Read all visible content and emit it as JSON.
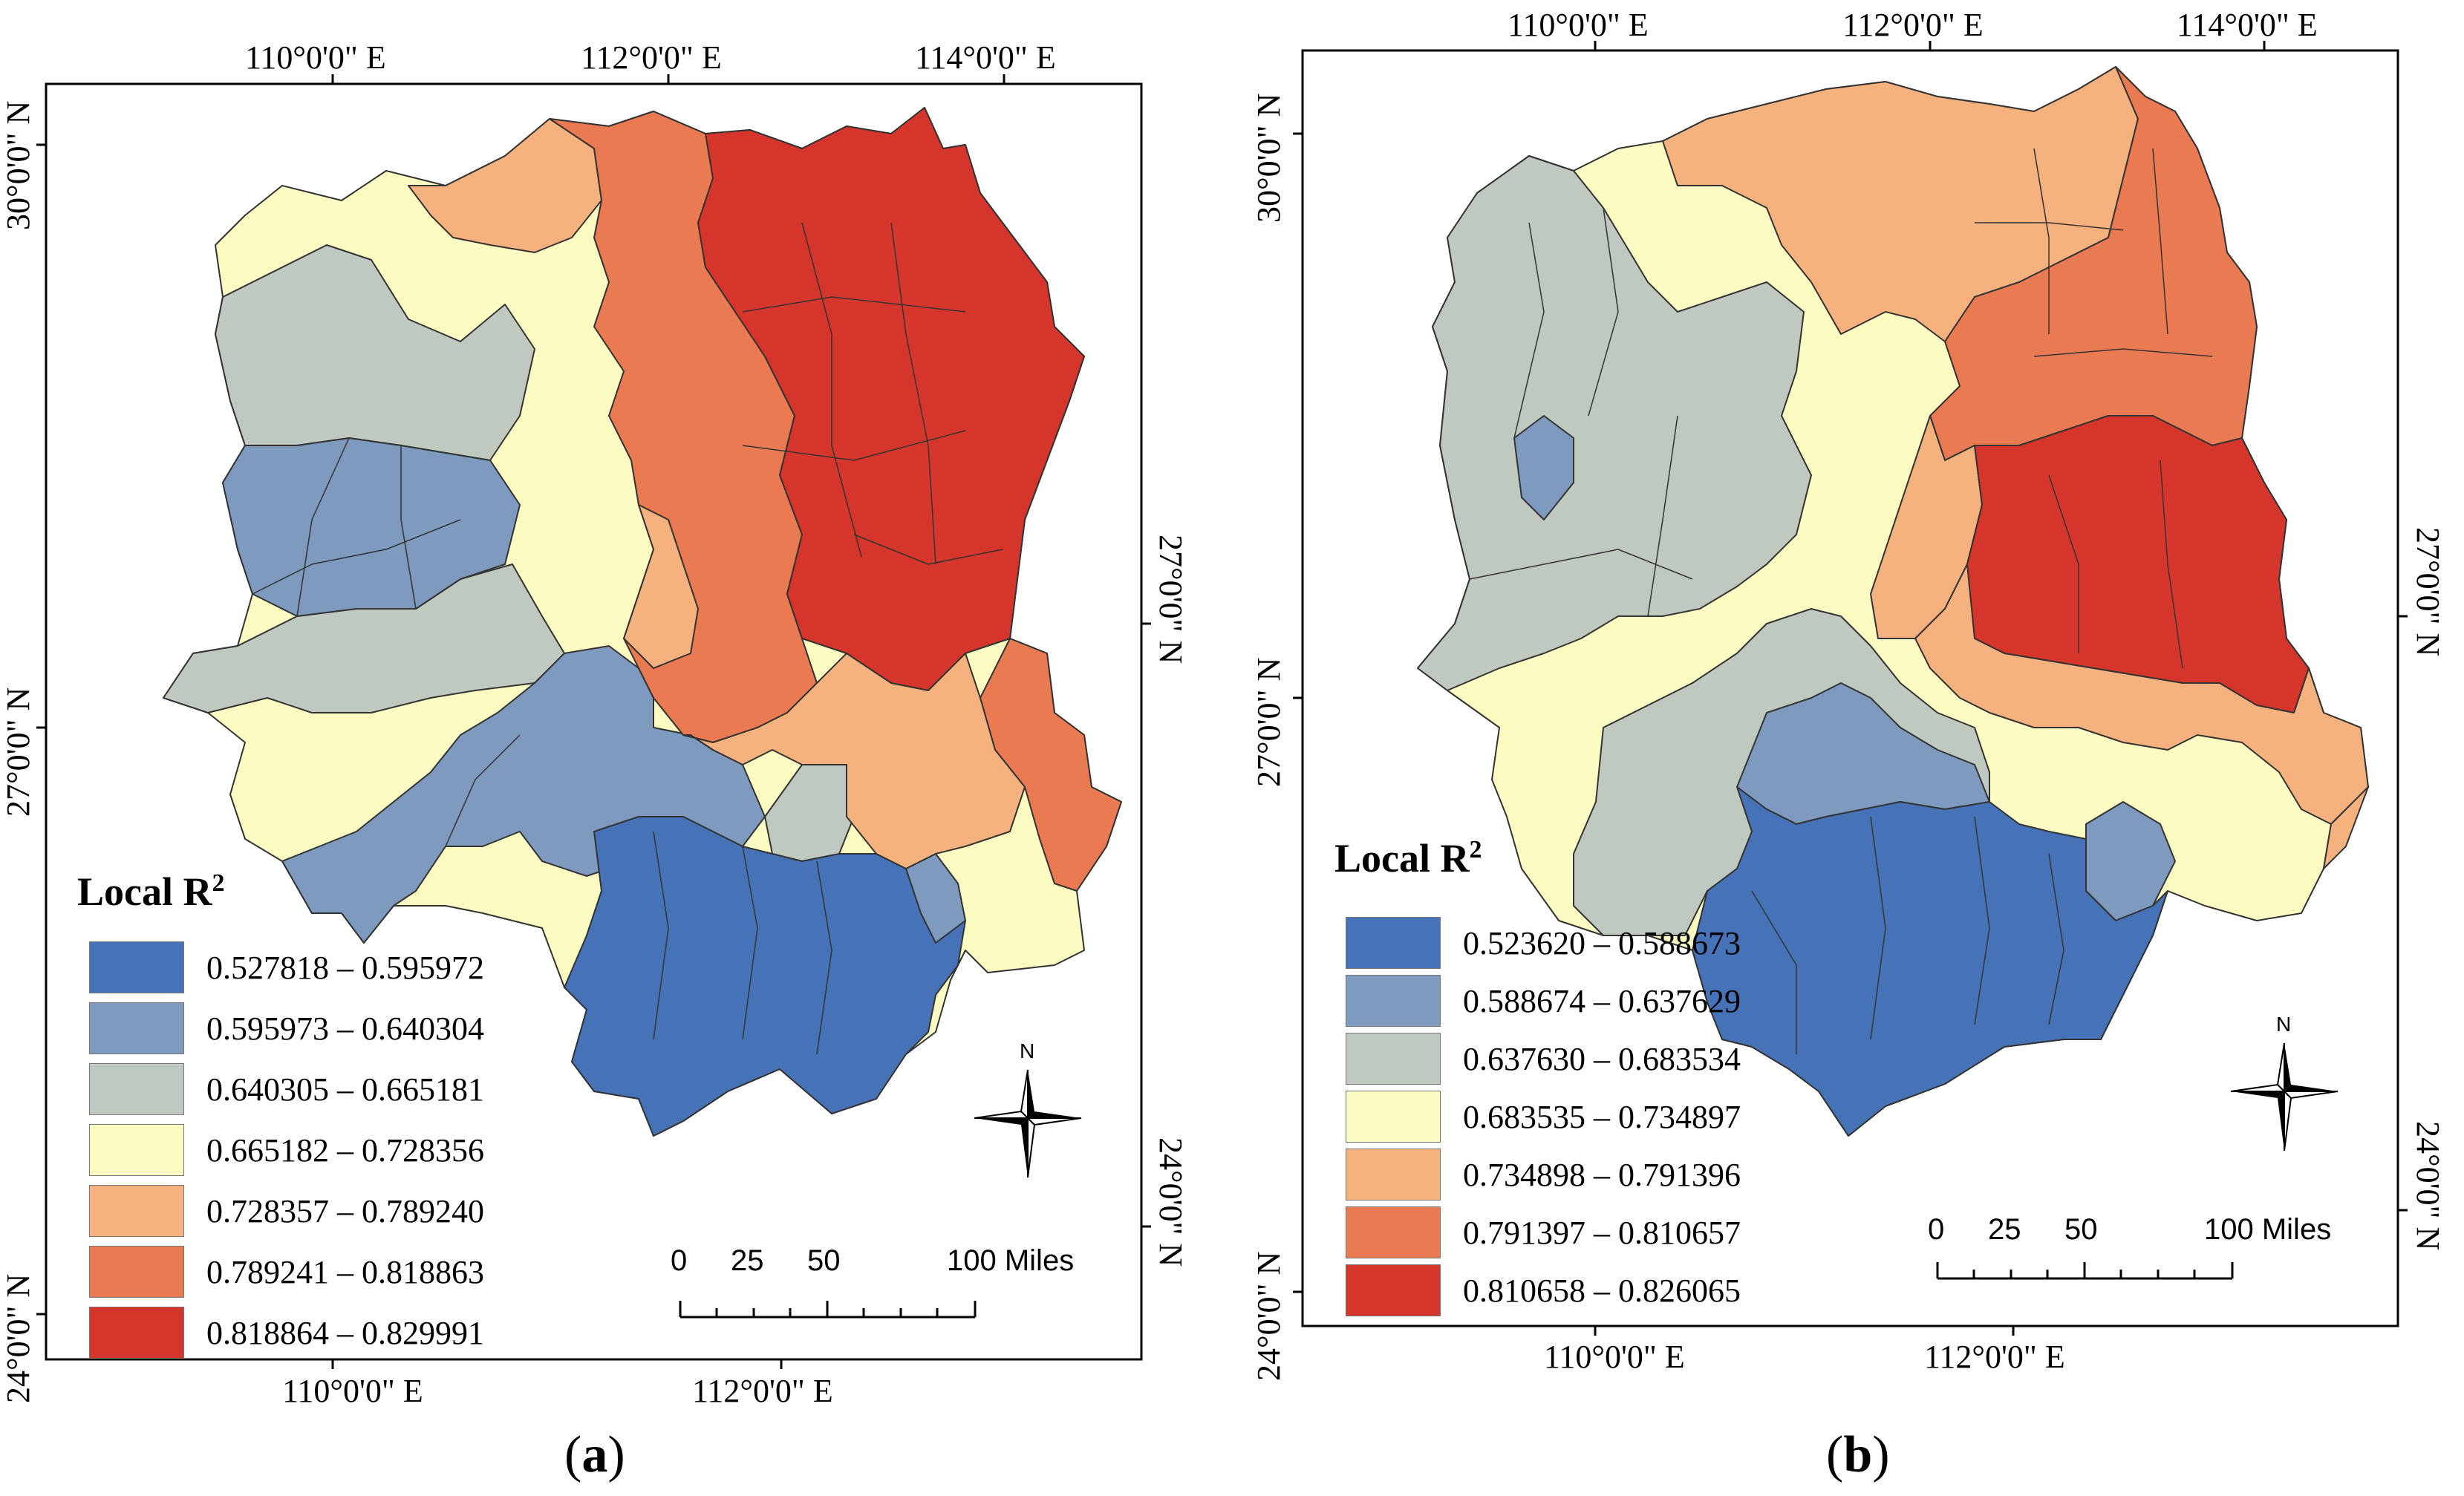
{
  "colors": {
    "c1": "#4673b7",
    "c2": "#7f9abf",
    "c3": "#bfc9bf",
    "c4": "#fcfbc2",
    "c5": "#f6b27e",
    "c6": "#ea7a52",
    "c7": "#d6352c"
  },
  "panels": [
    {
      "caption_open": "(",
      "caption_letter": "a",
      "caption_close": ")",
      "top_ticks": [
        "110°0'0\" E",
        "112°0'0\" E",
        "114°0'0\" E"
      ],
      "bottom_ticks": [
        "110°0'0\" E",
        "112°0'0\" E"
      ],
      "left_ticks": [
        "30°0'0\" N",
        "27°0'0\" N",
        "24°0'0\" N"
      ],
      "right_ticks": [
        "27°0'0\" N",
        "24°0'0\" N"
      ],
      "legend": {
        "title": "Local R",
        "title_sup": "2",
        "classes": [
          {
            "label": "0.527818 – 0.595972",
            "color": "#4673b7"
          },
          {
            "label": "0.595973 – 0.640304",
            "color": "#7f9abf"
          },
          {
            "label": "0.640305 – 0.665181",
            "color": "#bfc9bf"
          },
          {
            "label": "0.665182 – 0.728356",
            "color": "#fcfbc2"
          },
          {
            "label": "0.728357 – 0.789240",
            "color": "#f6b27e"
          },
          {
            "label": "0.789241 – 0.818863",
            "color": "#ea7a52"
          },
          {
            "label": "0.818864 – 0.829991",
            "color": "#d6352c"
          }
        ]
      },
      "scale": {
        "labels": [
          "0",
          "25",
          "50",
          "100 Miles"
        ]
      },
      "north": "N"
    },
    {
      "caption_open": "(",
      "caption_letter": "b",
      "caption_close": ")",
      "top_ticks": [
        "110°0'0\" E",
        "112°0'0\" E",
        "114°0'0\" E"
      ],
      "bottom_ticks": [
        "110°0'0\" E",
        "112°0'0\" E"
      ],
      "left_ticks": [
        "30°0'0\" N",
        "27°0'0\" N",
        "24°0'0\" N"
      ],
      "right_ticks": [
        "27°0'0\" N",
        "24°0'0\" N"
      ],
      "legend": {
        "title": "Local R",
        "title_sup": "2",
        "classes": [
          {
            "label": "0.523620 – 0.588673",
            "color": "#4673b7"
          },
          {
            "label": "0.588674 – 0.637629",
            "color": "#7f9abf"
          },
          {
            "label": "0.637630 – 0.683534",
            "color": "#bfc9bf"
          },
          {
            "label": "0.683535 – 0.734897",
            "color": "#fcfbc2"
          },
          {
            "label": "0.734898 – 0.791396",
            "color": "#f6b27e"
          },
          {
            "label": "0.791397 – 0.810657",
            "color": "#ea7a52"
          },
          {
            "label": "0.810658 – 0.826065",
            "color": "#d6352c"
          }
        ]
      },
      "scale": {
        "labels": [
          "0",
          "25",
          "50",
          "100 Miles"
        ]
      },
      "north": "N"
    }
  ]
}
